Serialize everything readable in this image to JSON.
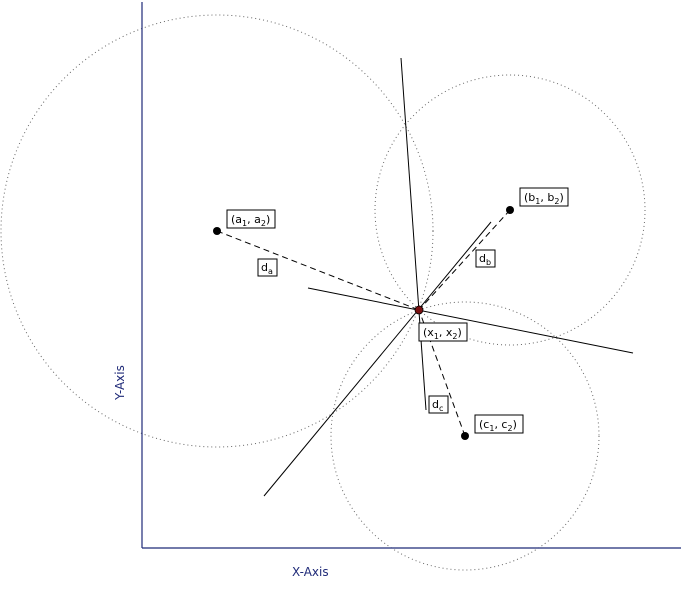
{
  "axes": {
    "x_label": "X-Axis",
    "y_label": "Y-Axis",
    "color": "#1f2a78"
  },
  "points": {
    "a": {
      "base": "(a",
      "sub1": "1",
      "mid": ", a",
      "sub2": "2",
      "end": ")"
    },
    "b": {
      "base": "(b",
      "sub1": "1",
      "mid": ", b",
      "sub2": "2",
      "end": ")"
    },
    "c": {
      "base": "(c",
      "sub1": "1",
      "mid": ", c",
      "sub2": "2",
      "end": ")"
    },
    "x": {
      "base": "(x",
      "sub1": "1",
      "mid": ", x",
      "sub2": "2",
      "end": ")"
    }
  },
  "distances": {
    "da": {
      "base": "d",
      "sub": "a"
    },
    "db": {
      "base": "d",
      "sub": "b"
    },
    "dc": {
      "base": "d",
      "sub": "c"
    }
  },
  "colors": {
    "point": "#000000",
    "center_point": "#7a1010",
    "circle": "#666666"
  }
}
